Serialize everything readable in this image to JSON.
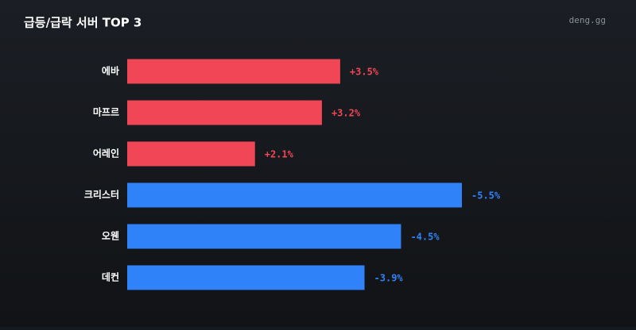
{
  "chart_data": {
    "type": "bar",
    "orientation": "horizontal",
    "title": "급등/급락 서버 TOP 3",
    "source": "deng.gg",
    "categories": [
      "에바",
      "마프르",
      "어레인",
      "크리스터",
      "오웬",
      "데컨"
    ],
    "values": [
      3.5,
      3.2,
      2.1,
      -5.5,
      -4.5,
      -3.9
    ],
    "value_labels": [
      "+3.5%",
      "+3.2%",
      "+2.1%",
      "-5.5%",
      "-4.5%",
      "-3.9%"
    ],
    "positive_color": "#f04656",
    "negative_color": "#2f82f7"
  }
}
